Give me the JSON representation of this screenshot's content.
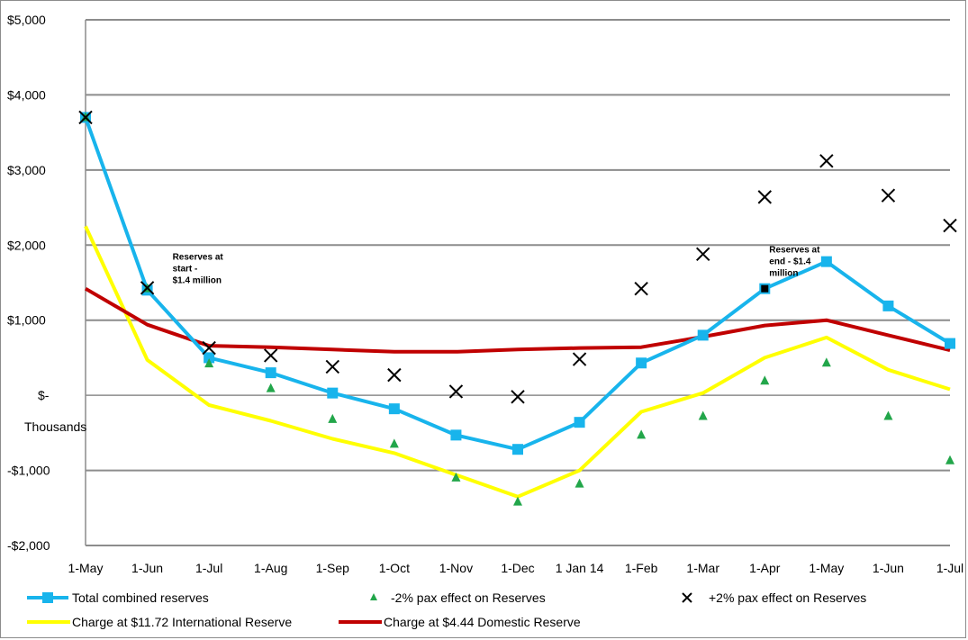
{
  "chart_data": {
    "type": "line",
    "ylabel": "Thousands",
    "ylim": [
      -2000,
      5000
    ],
    "y_ticks": [
      {
        "value": 5000,
        "label": "$5,000"
      },
      {
        "value": 4000,
        "label": "$4,000"
      },
      {
        "value": 3000,
        "label": "$3,000"
      },
      {
        "value": 2000,
        "label": "$2,000"
      },
      {
        "value": 1000,
        "label": "$1,000"
      },
      {
        "value": 0,
        "label": "$-"
      },
      {
        "value": -1000,
        "label": "-$1,000"
      },
      {
        "value": -2000,
        "label": "-$2,000"
      }
    ],
    "categories": [
      "1-May",
      "1-Jun",
      "1-Jul",
      "1-Aug",
      "1-Sep",
      "1-Oct",
      "1-Nov",
      "1-Dec",
      "1 Jan 14",
      "1-Feb",
      "1-Mar",
      "1-Apr",
      "1-May",
      "1-Jun",
      "1-Jul"
    ],
    "grid": true,
    "legend_position": "bottom",
    "series": [
      {
        "name": "Total combined reserves",
        "style": "line-square",
        "color": "#18b4ec",
        "values": [
          3700,
          1400,
          500,
          300,
          30,
          -180,
          -530,
          -720,
          -360,
          430,
          800,
          1420,
          1780,
          1190,
          690
        ]
      },
      {
        "name": "-2% pax  effect on Reserves",
        "style": "triangle",
        "color": "#22a64a",
        "values": [
          3700,
          1420,
          420,
          90,
          -320,
          -650,
          -1100,
          -1420,
          -1180,
          -530,
          -280,
          190,
          430,
          -280,
          -870
        ]
      },
      {
        "name": "+2% pax  effect on Reserves",
        "style": "cross",
        "color": "#000000",
        "values": [
          3700,
          1430,
          630,
          530,
          380,
          270,
          50,
          -20,
          480,
          1420,
          1880,
          2640,
          3120,
          2660,
          2260
        ]
      },
      {
        "name": "Charge at $11.72 International Reserve",
        "style": "line",
        "color": "#ffff00",
        "values": [
          2250,
          470,
          -130,
          -340,
          -580,
          -770,
          -1060,
          -1350,
          -1000,
          -220,
          30,
          500,
          770,
          340,
          80
        ]
      },
      {
        "name": "Charge at $4.44 Domestic Reserve",
        "style": "line",
        "color": "#c00000",
        "values": [
          1420,
          940,
          660,
          640,
          610,
          580,
          580,
          610,
          630,
          640,
          780,
          930,
          1000,
          800,
          600
        ]
      }
    ],
    "annotations": [
      {
        "lines": [
          "Reserves at",
          "start -",
          "$1.4 million"
        ],
        "x_index": 1,
        "y": 1400
      },
      {
        "lines": [
          "Reserves at",
          "end - $1.4",
          "million"
        ],
        "x_index": 11,
        "y": 1420
      }
    ],
    "annotation_marker": {
      "x_index": 11,
      "y": 1420,
      "color": "#000000"
    }
  }
}
